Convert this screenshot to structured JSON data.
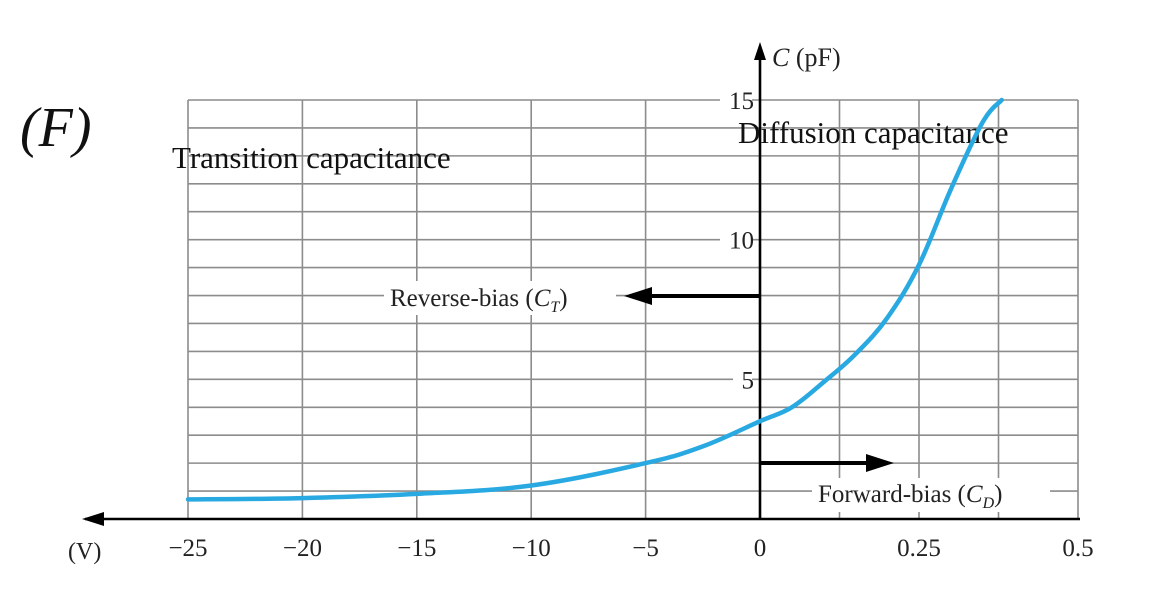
{
  "panel_label": "(F)",
  "chart_data": {
    "type": "line",
    "title": "",
    "xlabel": "(V)",
    "ylabel": "C (pF)",
    "reverse_region": {
      "label": "Transition capacitance",
      "x_ticks": [
        "−25",
        "−20",
        "−15",
        "−10",
        "−5",
        "0"
      ],
      "x_tick_values": [
        -25,
        -20,
        -15,
        -10,
        -5,
        0
      ],
      "xlim": [
        -25,
        0
      ]
    },
    "forward_region": {
      "label": "Diffusion capacitance",
      "x_ticks": [
        "0.25",
        "0.5"
      ],
      "x_tick_values": [
        0.25,
        0.5
      ],
      "xlim": [
        0,
        0.5
      ]
    },
    "y_ticks": [
      "5",
      "10",
      "15"
    ],
    "y_tick_values": [
      5,
      10,
      15
    ],
    "ylim": [
      0,
      15
    ],
    "grid": true,
    "annotations": {
      "reverse_arrow": {
        "label": "Reverse-bias (",
        "symbol": "C",
        "subscript": "T",
        "close": ")",
        "y": 8
      },
      "forward_arrow": {
        "label": "Forward-bias (",
        "symbol": "C",
        "subscript": "D",
        "close": ")",
        "y": 2
      }
    },
    "series": [
      {
        "color": "#29a9e1",
        "points": [
          {
            "x": -25,
            "y": 0.7
          },
          {
            "x": -20,
            "y": 0.75
          },
          {
            "x": -15,
            "y": 0.9
          },
          {
            "x": -10,
            "y": 1.2
          },
          {
            "x": -5,
            "y": 2.0
          },
          {
            "x": -2.5,
            "y": 2.6
          },
          {
            "x": 0,
            "y": 3.5
          },
          {
            "x": 0.05,
            "y": 4.0
          },
          {
            "x": 0.1,
            "y": 4.9
          },
          {
            "x": 0.15,
            "y": 5.9
          },
          {
            "x": 0.2,
            "y": 7.2
          },
          {
            "x": 0.25,
            "y": 9.1
          },
          {
            "x": 0.3,
            "y": 11.8
          },
          {
            "x": 0.35,
            "y": 14.2
          },
          {
            "x": 0.38,
            "y": 15.0
          }
        ]
      }
    ]
  }
}
